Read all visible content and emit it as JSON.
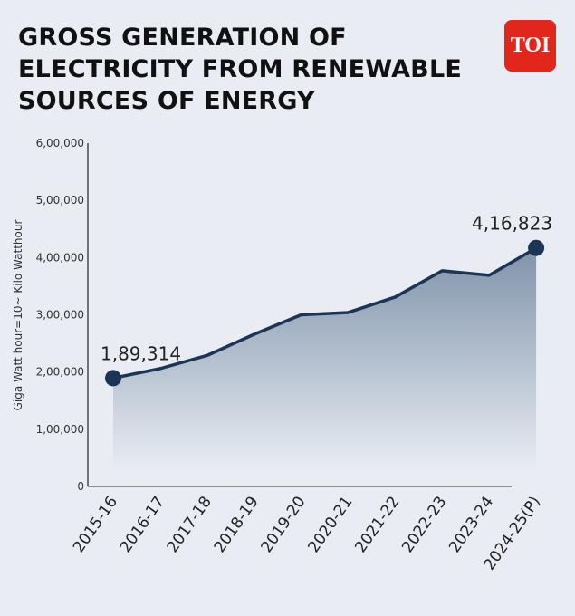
{
  "title": "GROSS GENERATION OF ELECTRICITY FROM RENEWABLE SOURCES OF ENERGY",
  "logo": "TOI",
  "colors": {
    "line": "#1c3557",
    "fill_top": "#7f93aa",
    "logo": "#e1261c",
    "background": "#e9edf3"
  },
  "chart_data": {
    "type": "area",
    "title": "GROSS GENERATION OF ELECTRICITY FROM RENEWABLE SOURCES OF ENERGY",
    "xlabel": "",
    "ylabel": "Giga Watt hour=10~ Kilo Watthour",
    "ylim": [
      0,
      600000
    ],
    "grid": false,
    "categories": [
      "2015-16",
      "2016-17",
      "2017-18",
      "2018-19",
      "2019-20",
      "2020-21",
      "2021-22",
      "2022-23",
      "2023-24",
      "2024-25(P)"
    ],
    "values": [
      189314,
      206000,
      229000,
      266000,
      300000,
      304000,
      331000,
      377000,
      369000,
      416823
    ],
    "yticks": [
      0,
      100000,
      200000,
      300000,
      400000,
      500000,
      600000
    ],
    "ytick_labels": [
      "0",
      "1,00,000",
      "2,00,000",
      "3,00,000",
      "4,00,000",
      "5,00,000",
      "6,00,000"
    ],
    "data_labels": [
      {
        "index": 0,
        "text": "1,89,314"
      },
      {
        "index": 9,
        "text": "4,16,823"
      }
    ]
  }
}
